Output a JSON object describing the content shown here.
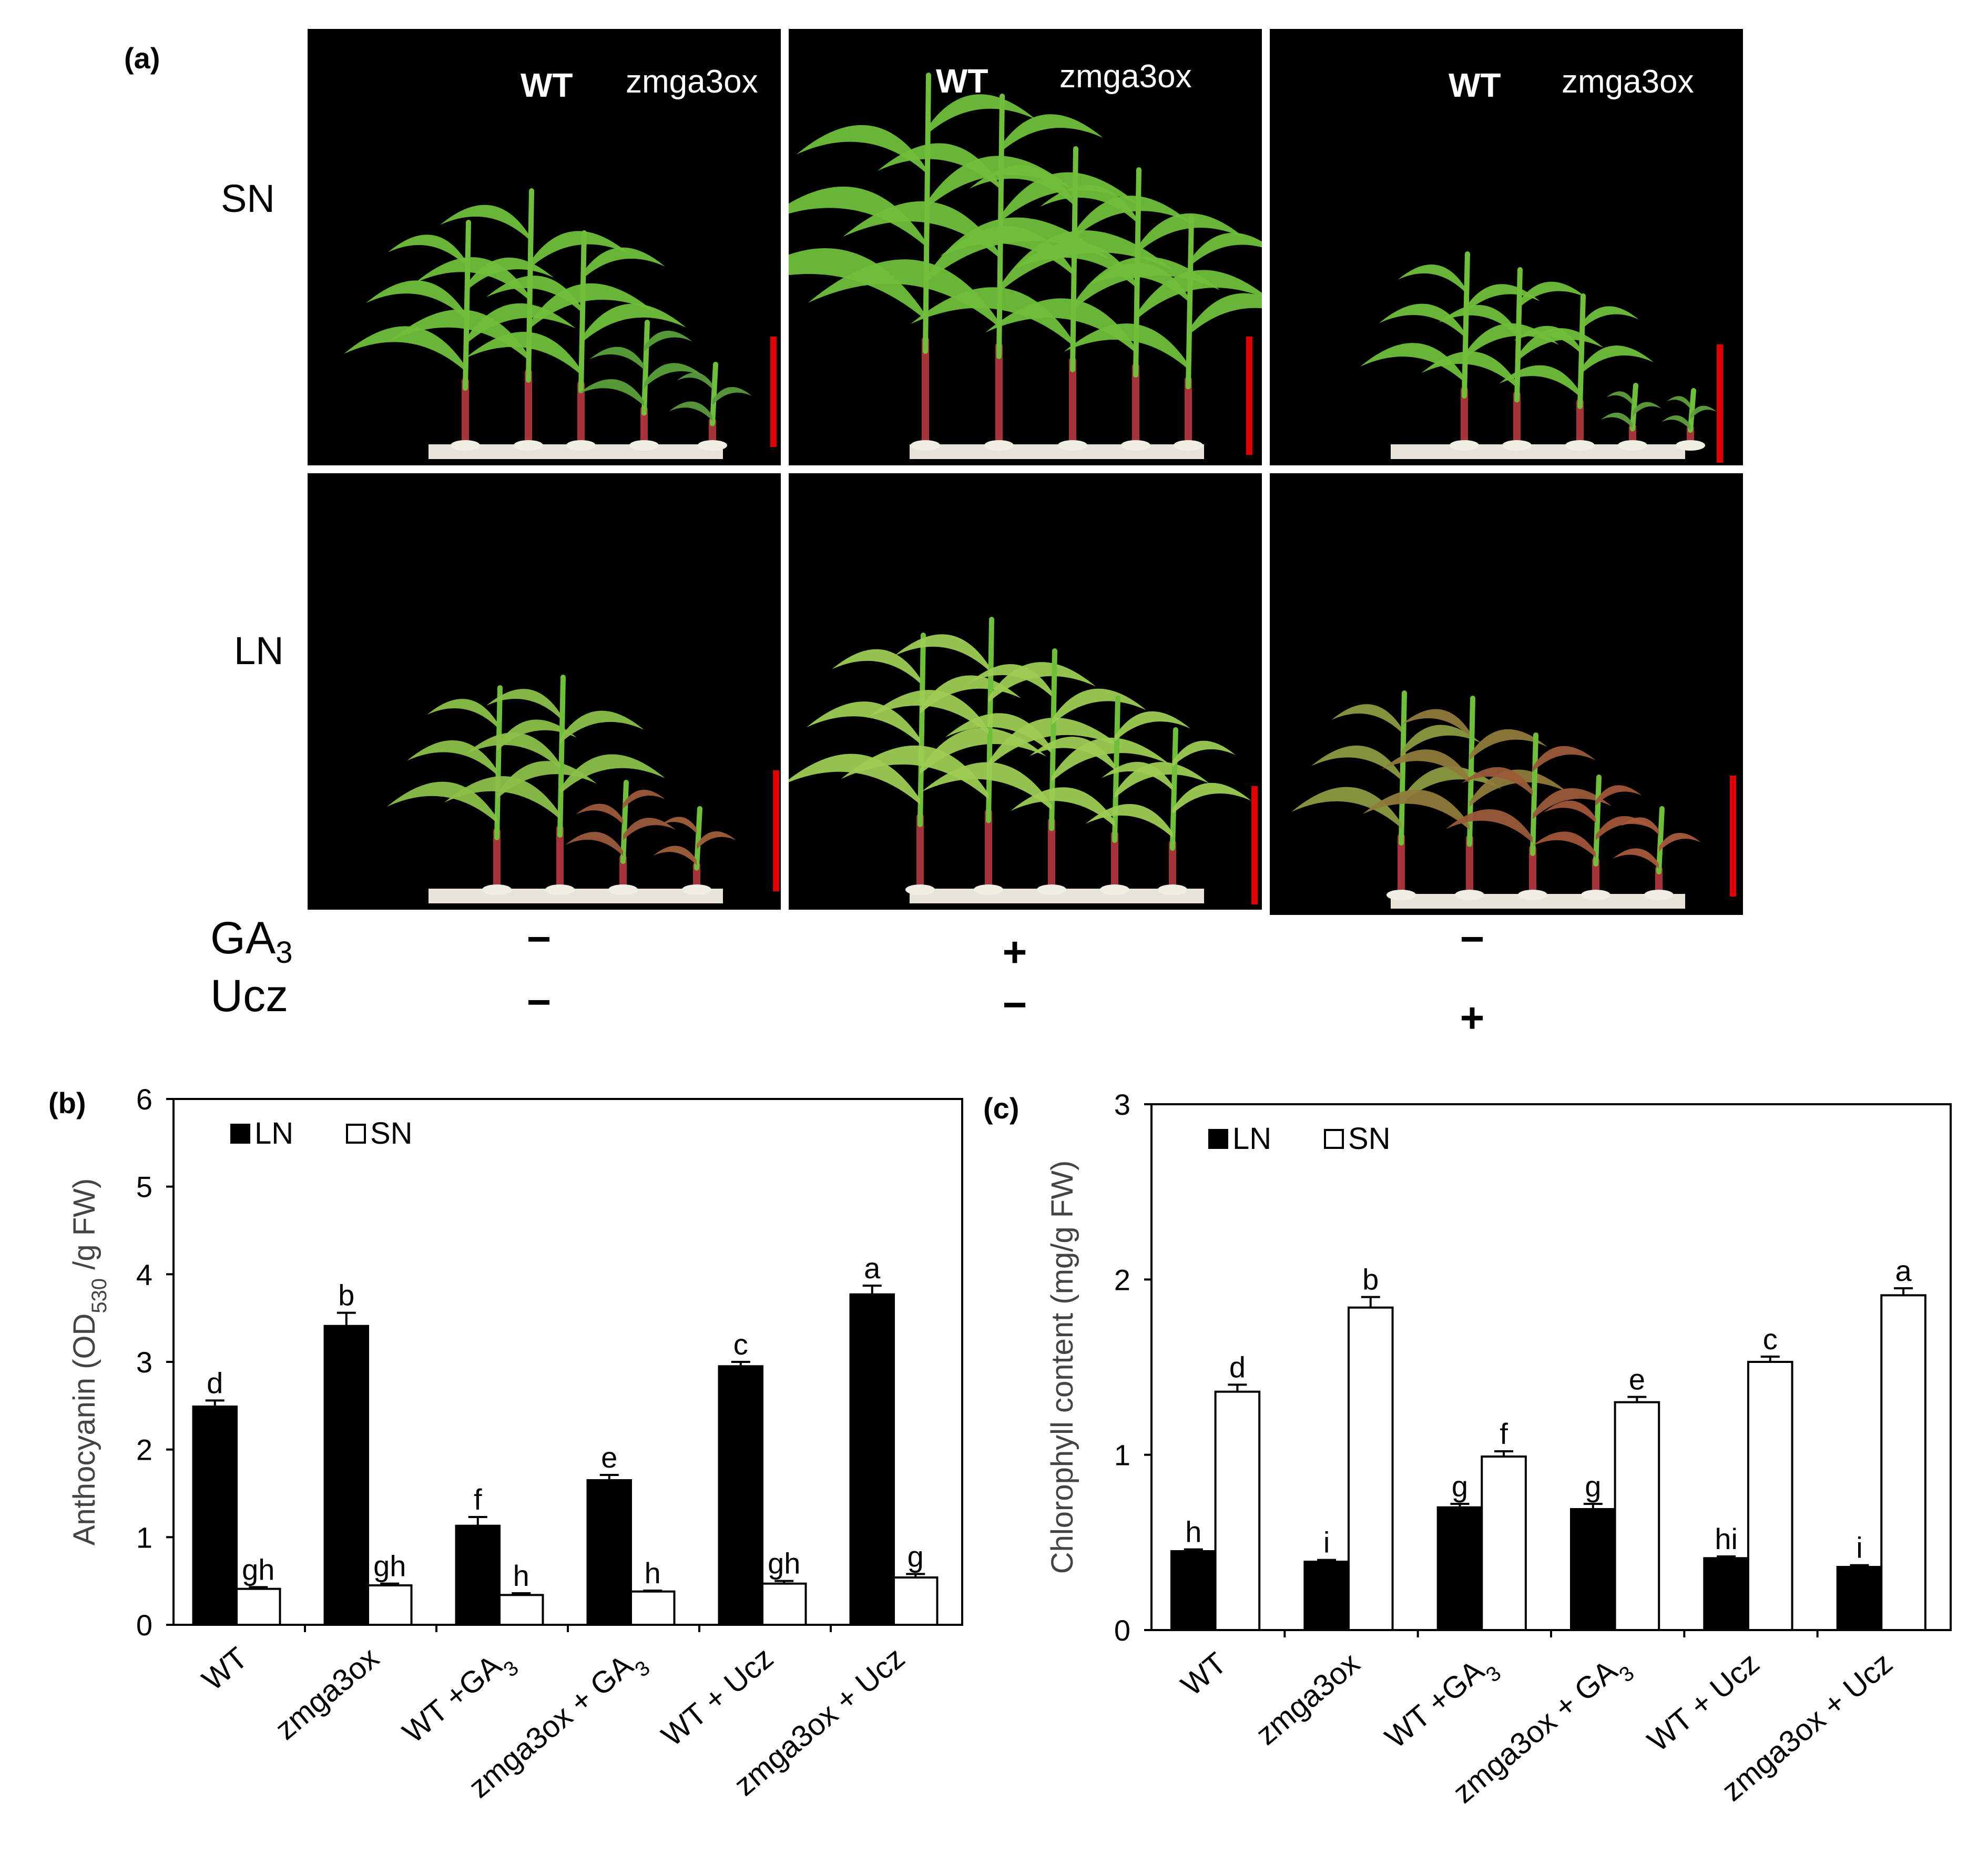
{
  "figure": {
    "panel_a_label": "(a)",
    "panel_b_label": "(b)",
    "panel_c_label": "(c)",
    "photo_wt_label": "WT",
    "photo_mutant_label": "zmga3ox",
    "row_labels": [
      "SN",
      "LN"
    ],
    "treatment_ga3_base": "GA",
    "treatment_ga3_sub": "3",
    "treatment_ucz": "Ucz",
    "ga3_signs": [
      "−",
      "+",
      "−"
    ],
    "ucz_signs": [
      "−",
      "−",
      "+"
    ],
    "scale_bar_color": "#e00000",
    "plant_green": "#6fbf3a",
    "stem_red": "#a8323a"
  },
  "chart_data": [
    {
      "type": "bar",
      "panel": "(b)",
      "ylabel_main": "Anthocyanin (OD",
      "ylabel_sub": "530",
      "ylabel_tail": " /g FW)",
      "ylim": [
        0,
        6
      ],
      "yticks": [
        "0",
        "1",
        "2",
        "3",
        "4",
        "5",
        "6"
      ],
      "legend_placement": "top-left",
      "categories": [
        "WT",
        "zmga3ox",
        "WT +GA3",
        "zmga3ox + GA3",
        "WT + Ucz",
        "zmga3ox + Ucz"
      ],
      "category_labels": [
        {
          "base": "WT",
          "sub": "",
          "tail": ""
        },
        {
          "base": "zmga3ox",
          "sub": "",
          "tail": ""
        },
        {
          "base": "WT +GA",
          "sub": "3",
          "tail": ""
        },
        {
          "base": "zmga3ox + GA",
          "sub": "3",
          "tail": ""
        },
        {
          "base": "WT + Ucz",
          "sub": "",
          "tail": ""
        },
        {
          "base": "zmga3ox + Ucz",
          "sub": "",
          "tail": ""
        }
      ],
      "series": [
        {
          "name": "LN",
          "color": "#000000",
          "values": [
            2.49,
            3.41,
            1.13,
            1.65,
            2.95,
            3.77
          ],
          "errors": [
            0.07,
            0.15,
            0.1,
            0.06,
            0.05,
            0.1
          ],
          "letters": [
            "d",
            "b",
            "f",
            "e",
            "c",
            "a"
          ]
        },
        {
          "name": "SN",
          "color": "#ffffff",
          "values": [
            0.41,
            0.45,
            0.34,
            0.38,
            0.47,
            0.54
          ],
          "errors": [
            0.02,
            0.02,
            0.02,
            0.01,
            0.03,
            0.04
          ],
          "letters": [
            "gh",
            "gh",
            "h",
            "h",
            "gh",
            "g"
          ]
        }
      ]
    },
    {
      "type": "bar",
      "panel": "(c)",
      "ylabel_main": "Chlorophyll content (mg/g FW)",
      "ylabel_sub": "",
      "ylabel_tail": "",
      "ylim": [
        0,
        3
      ],
      "yticks": [
        "0",
        "1",
        "2",
        "3"
      ],
      "legend_placement": "top-left",
      "categories": [
        "WT",
        "zmga3ox",
        "WT +GA3",
        "zmga3ox + GA3",
        "WT + Ucz",
        "zmga3ox + Ucz"
      ],
      "category_labels": [
        {
          "base": "WT",
          "sub": "",
          "tail": ""
        },
        {
          "base": "zmga3ox",
          "sub": "",
          "tail": ""
        },
        {
          "base": "WT +GA",
          "sub": "3",
          "tail": ""
        },
        {
          "base": "zmga3ox + GA",
          "sub": "3",
          "tail": ""
        },
        {
          "base": "WT + Ucz",
          "sub": "",
          "tail": ""
        },
        {
          "base": "zmga3ox + Ucz",
          "sub": "",
          "tail": ""
        }
      ],
      "series": [
        {
          "name": "LN",
          "color": "#000000",
          "values": [
            0.45,
            0.39,
            0.7,
            0.69,
            0.41,
            0.36
          ],
          "errors": [
            0.01,
            0.01,
            0.02,
            0.03,
            0.01,
            0.01
          ],
          "letters": [
            "h",
            "i",
            "g",
            "g",
            "hi",
            "i"
          ]
        },
        {
          "name": "SN",
          "color": "#ffffff",
          "values": [
            1.36,
            1.84,
            0.99,
            1.3,
            1.53,
            1.91
          ],
          "errors": [
            0.04,
            0.06,
            0.03,
            0.03,
            0.03,
            0.04
          ],
          "letters": [
            "d",
            "b",
            "f",
            "e",
            "c",
            "a"
          ]
        }
      ]
    }
  ]
}
